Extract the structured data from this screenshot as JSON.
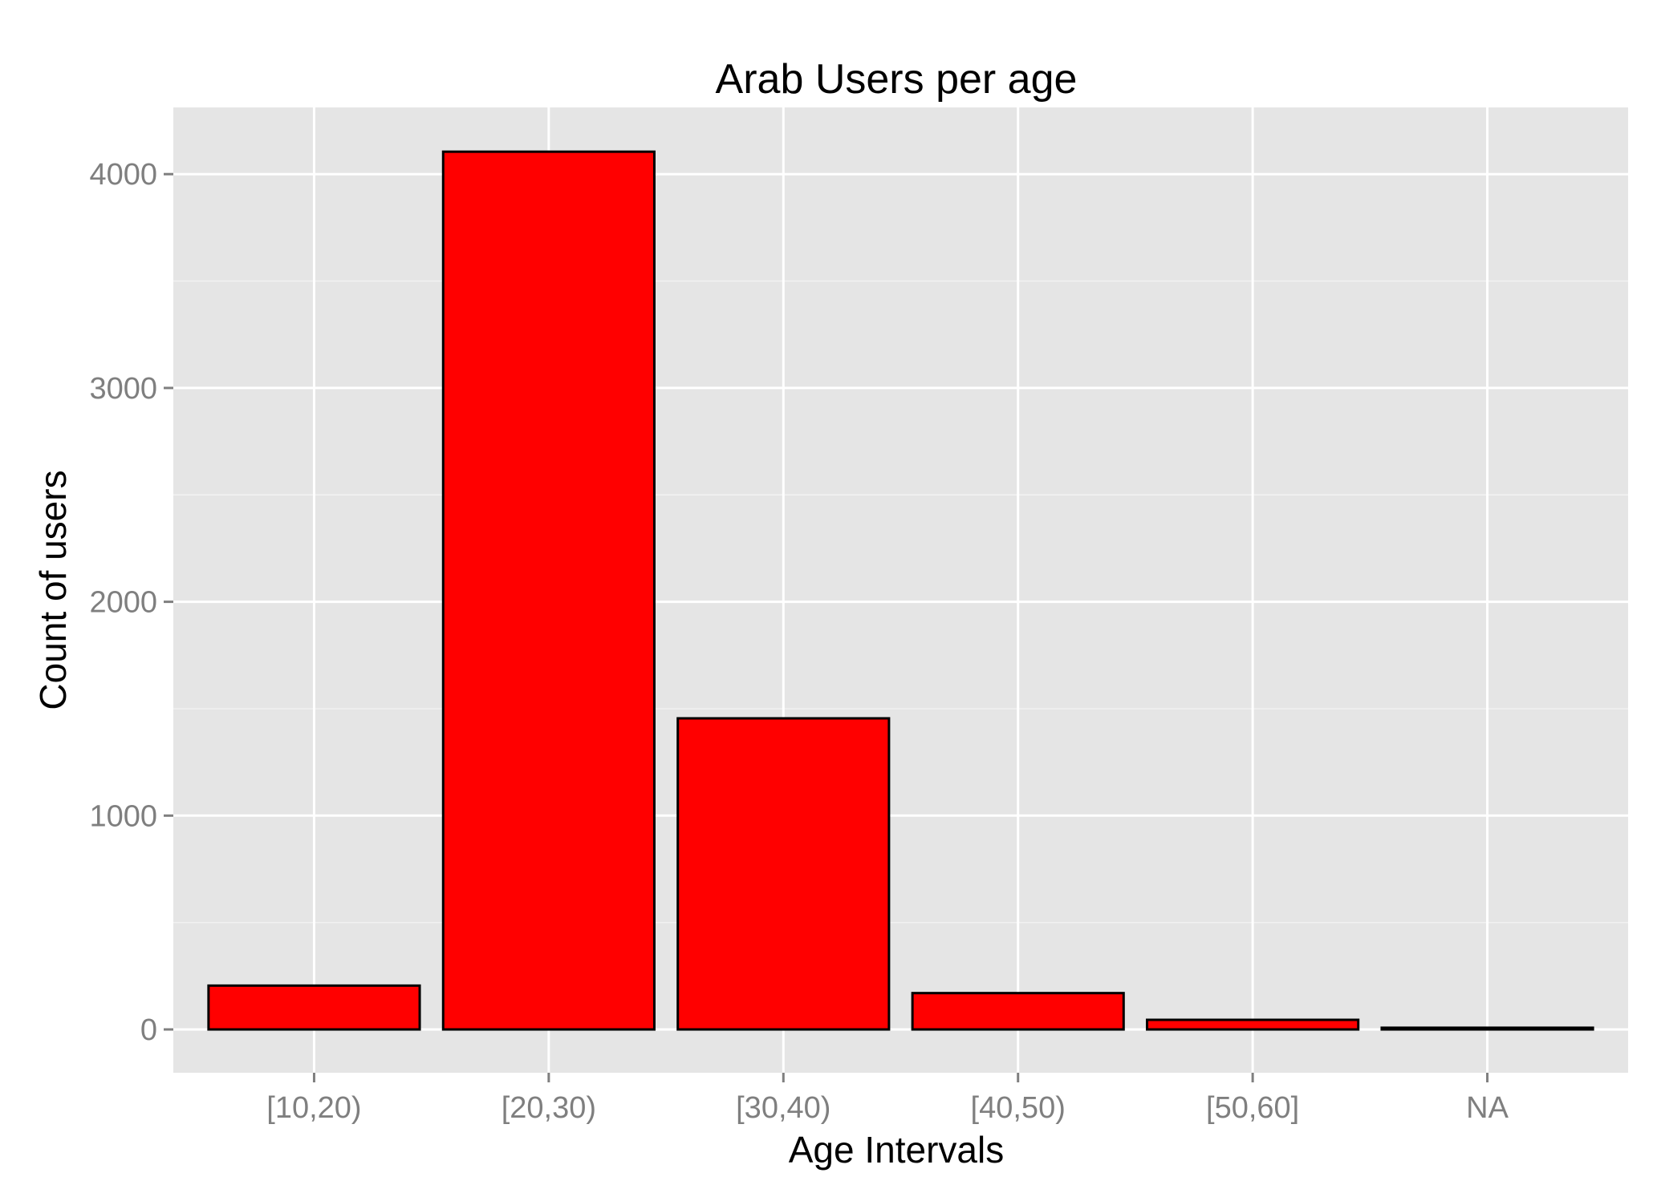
{
  "colors": {
    "panel_background": "#e5e5e5",
    "grid": "#ffffff",
    "bar_fill": "#ff0000",
    "bar_outline": "#000000",
    "tick_label": "#7f7f7f",
    "tick_mark": "#7f7f7f",
    "text": "#000000"
  },
  "chart_data": {
    "type": "bar",
    "title": "Arab Users per age",
    "xlabel": "Age Intervals",
    "ylabel": "Count of users",
    "categories": [
      "[10,20)",
      "[20,30)",
      "[30,40)",
      "[40,50)",
      "[50,60]",
      "NA"
    ],
    "values": [
      205,
      4105,
      1455,
      170,
      45,
      8
    ],
    "ylim": [
      -200,
      4300
    ],
    "yticks": [
      0,
      1000,
      2000,
      3000,
      4000
    ],
    "ytick_labels": [
      "0",
      "1000",
      "2000",
      "3000",
      "4000"
    ],
    "grid": true,
    "legend": "none"
  }
}
